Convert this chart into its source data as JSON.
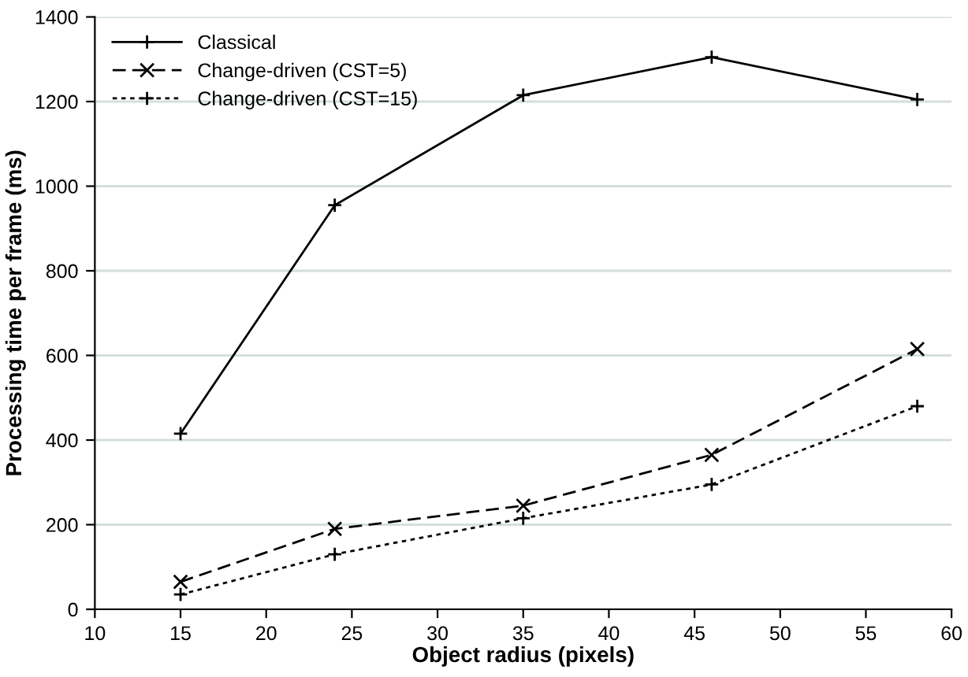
{
  "chart_data": {
    "type": "line",
    "xlabel": "Object radius (pixels)",
    "ylabel": "Processing time per frame (ms)",
    "xlim": [
      10,
      60
    ],
    "xticks": [
      10,
      15,
      20,
      25,
      30,
      35,
      40,
      45,
      50,
      55,
      60
    ],
    "ylim": [
      0,
      1400
    ],
    "yticks": [
      0,
      200,
      400,
      600,
      800,
      1000,
      1200,
      1400
    ],
    "grid": "y",
    "legend": "top left",
    "series": [
      {
        "name": "Classical",
        "color": "#000000",
        "x": [
          15,
          24,
          35,
          46,
          58
        ],
        "values": [
          415,
          955,
          1215,
          1305,
          1205
        ],
        "marker": "plus",
        "line_style": "solid"
      },
      {
        "name": "Change-driven (CST=5)",
        "color": "#000000",
        "x": [
          15,
          24,
          35,
          46,
          58
        ],
        "values": [
          65,
          190,
          245,
          365,
          615
        ],
        "marker": "cross",
        "line_style": "dashed"
      },
      {
        "name": "Change-driven (CST=15)",
        "color": "#000000",
        "x": [
          15,
          24,
          35,
          46,
          58
        ],
        "values": [
          35,
          130,
          215,
          295,
          480
        ],
        "marker": "plus",
        "line_style": "dotted"
      }
    ]
  }
}
